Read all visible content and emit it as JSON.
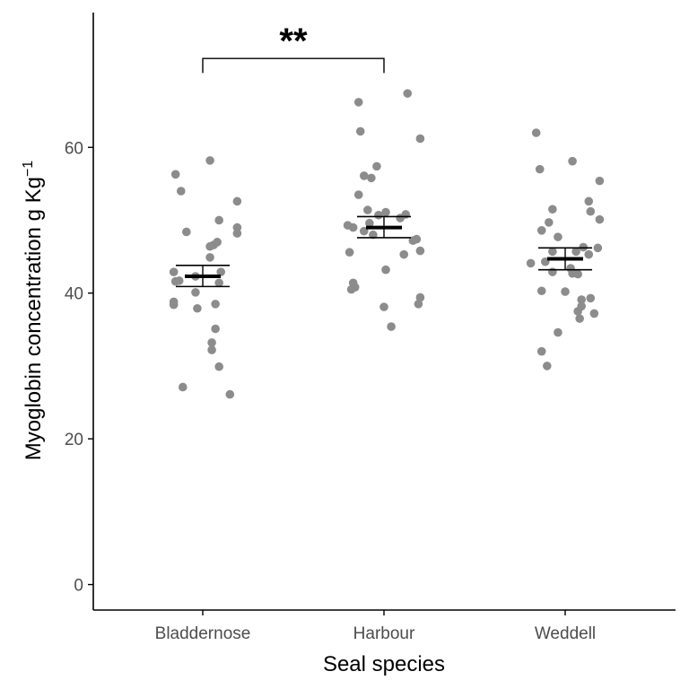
{
  "chart_data": {
    "type": "scatter",
    "xlabel": "Seal species",
    "ylabel": "Myoglobin concentration g Kg",
    "ylabel_superscript": "−1",
    "ylim": [
      -3.5,
      78.5
    ],
    "yticks": [
      0,
      20,
      40,
      60
    ],
    "grid": false,
    "categories": [
      "Bladdernose",
      "Harbour",
      "Weddell"
    ],
    "colors": {
      "points": "#8c8c8c",
      "summary": "#000000",
      "axis": "#000000"
    },
    "groups": [
      {
        "name": "Bladdernose",
        "mean": 42.3,
        "ci_low": 40.9,
        "ci_high": 43.8,
        "points": [
          {
            "dx": 0.04,
            "y": 58.2
          },
          {
            "dx": -0.15,
            "y": 56.3
          },
          {
            "dx": -0.12,
            "y": 54.0
          },
          {
            "dx": 0.19,
            "y": 52.6
          },
          {
            "dx": 0.09,
            "y": 50.0
          },
          {
            "dx": 0.19,
            "y": 49.0
          },
          {
            "dx": -0.09,
            "y": 48.4
          },
          {
            "dx": 0.19,
            "y": 48.2
          },
          {
            "dx": 0.08,
            "y": 47.0
          },
          {
            "dx": 0.06,
            "y": 46.6
          },
          {
            "dx": 0.04,
            "y": 46.4
          },
          {
            "dx": 0.04,
            "y": 44.9
          },
          {
            "dx": -0.16,
            "y": 42.9
          },
          {
            "dx": 0.1,
            "y": 42.9
          },
          {
            "dx": -0.04,
            "y": 42.3
          },
          {
            "dx": -0.15,
            "y": 41.6
          },
          {
            "dx": -0.13,
            "y": 41.7
          },
          {
            "dx": 0.09,
            "y": 41.4
          },
          {
            "dx": -0.04,
            "y": 40.1
          },
          {
            "dx": -0.16,
            "y": 38.8
          },
          {
            "dx": -0.16,
            "y": 38.4
          },
          {
            "dx": 0.07,
            "y": 38.5
          },
          {
            "dx": -0.03,
            "y": 37.9
          },
          {
            "dx": 0.07,
            "y": 35.1
          },
          {
            "dx": 0.05,
            "y": 33.2
          },
          {
            "dx": 0.05,
            "y": 32.2
          },
          {
            "dx": 0.09,
            "y": 29.9
          },
          {
            "dx": -0.11,
            "y": 27.1
          },
          {
            "dx": 0.15,
            "y": 26.1
          }
        ]
      },
      {
        "name": "Harbour",
        "mean": 49.0,
        "ci_low": 47.6,
        "ci_high": 50.5,
        "points": [
          {
            "dx": 0.13,
            "y": 67.4
          },
          {
            "dx": -0.14,
            "y": 66.2
          },
          {
            "dx": -0.13,
            "y": 62.2
          },
          {
            "dx": 0.2,
            "y": 61.2
          },
          {
            "dx": -0.04,
            "y": 57.4
          },
          {
            "dx": -0.11,
            "y": 56.1
          },
          {
            "dx": -0.07,
            "y": 55.8
          },
          {
            "dx": -0.14,
            "y": 53.5
          },
          {
            "dx": -0.09,
            "y": 51.4
          },
          {
            "dx": 0.01,
            "y": 51.1
          },
          {
            "dx": -0.03,
            "y": 50.7
          },
          {
            "dx": 0.12,
            "y": 50.8
          },
          {
            "dx": 0.09,
            "y": 50.3
          },
          {
            "dx": -0.2,
            "y": 49.3
          },
          {
            "dx": -0.08,
            "y": 49.6
          },
          {
            "dx": -0.17,
            "y": 49.0
          },
          {
            "dx": -0.11,
            "y": 48.5
          },
          {
            "dx": -0.06,
            "y": 48.0
          },
          {
            "dx": 0.18,
            "y": 47.4
          },
          {
            "dx": 0.16,
            "y": 47.2
          },
          {
            "dx": -0.19,
            "y": 45.6
          },
          {
            "dx": 0.11,
            "y": 45.3
          },
          {
            "dx": 0.2,
            "y": 45.8
          },
          {
            "dx": 0.01,
            "y": 43.2
          },
          {
            "dx": -0.17,
            "y": 41.4
          },
          {
            "dx": -0.16,
            "y": 40.8
          },
          {
            "dx": -0.18,
            "y": 40.5
          },
          {
            "dx": 0.2,
            "y": 39.4
          },
          {
            "dx": 0.19,
            "y": 38.5
          },
          {
            "dx": 0.0,
            "y": 38.1
          },
          {
            "dx": 0.04,
            "y": 35.4
          }
        ]
      },
      {
        "name": "Weddell",
        "mean": 44.7,
        "ci_low": 43.2,
        "ci_high": 46.2,
        "points": [
          {
            "dx": -0.16,
            "y": 62.0
          },
          {
            "dx": 0.04,
            "y": 58.1
          },
          {
            "dx": -0.14,
            "y": 57.0
          },
          {
            "dx": 0.19,
            "y": 55.4
          },
          {
            "dx": 0.13,
            "y": 52.6
          },
          {
            "dx": -0.07,
            "y": 51.5
          },
          {
            "dx": 0.14,
            "y": 51.2
          },
          {
            "dx": 0.19,
            "y": 50.1
          },
          {
            "dx": -0.09,
            "y": 49.7
          },
          {
            "dx": -0.13,
            "y": 48.6
          },
          {
            "dx": -0.04,
            "y": 47.7
          },
          {
            "dx": 0.1,
            "y": 46.3
          },
          {
            "dx": 0.18,
            "y": 46.2
          },
          {
            "dx": 0.06,
            "y": 45.7
          },
          {
            "dx": -0.07,
            "y": 45.7
          },
          {
            "dx": 0.13,
            "y": 45.3
          },
          {
            "dx": -0.11,
            "y": 44.3
          },
          {
            "dx": -0.19,
            "y": 44.1
          },
          {
            "dx": 0.03,
            "y": 43.4
          },
          {
            "dx": -0.07,
            "y": 42.9
          },
          {
            "dx": 0.04,
            "y": 42.7
          },
          {
            "dx": 0.07,
            "y": 42.6
          },
          {
            "dx": -0.13,
            "y": 40.3
          },
          {
            "dx": 0.0,
            "y": 40.2
          },
          {
            "dx": 0.09,
            "y": 39.1
          },
          {
            "dx": 0.14,
            "y": 39.3
          },
          {
            "dx": 0.09,
            "y": 38.2
          },
          {
            "dx": 0.07,
            "y": 37.5
          },
          {
            "dx": 0.16,
            "y": 37.2
          },
          {
            "dx": 0.08,
            "y": 36.5
          },
          {
            "dx": -0.04,
            "y": 34.6
          },
          {
            "dx": -0.13,
            "y": 32.0
          },
          {
            "dx": -0.1,
            "y": 30.0
          }
        ]
      }
    ],
    "annotations": [
      {
        "type": "significance-bracket",
        "from": "Bladdernose",
        "to": "Harbour",
        "y": 72.2,
        "y_drop": 70.2,
        "label": "**"
      }
    ]
  }
}
